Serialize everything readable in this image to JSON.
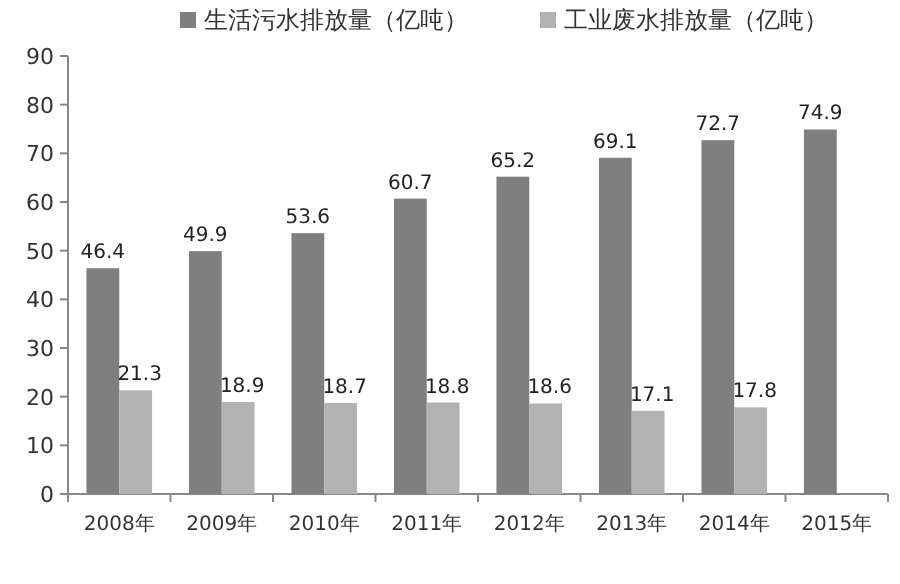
{
  "chart_data": {
    "type": "bar",
    "categories": [
      "2008年",
      "2009年",
      "2010年",
      "2011年",
      "2012年",
      "2013年",
      "2014年",
      "2015年"
    ],
    "series": [
      {
        "name": "生活污水排放量（亿吨）",
        "color": "#7f7f7f",
        "values": [
          46.4,
          49.9,
          53.6,
          60.7,
          65.2,
          69.1,
          72.7,
          74.9
        ]
      },
      {
        "name": "工业废水排放量（亿吨）",
        "color": "#b2b2b2",
        "values": [
          21.3,
          18.9,
          18.7,
          18.8,
          18.6,
          17.1,
          17.8,
          null
        ]
      }
    ],
    "ylim": [
      0,
      90
    ],
    "yticks": [
      0,
      10,
      20,
      30,
      40,
      50,
      60,
      70,
      80,
      90
    ],
    "data_labels": true,
    "grid": false,
    "legend": "top"
  }
}
